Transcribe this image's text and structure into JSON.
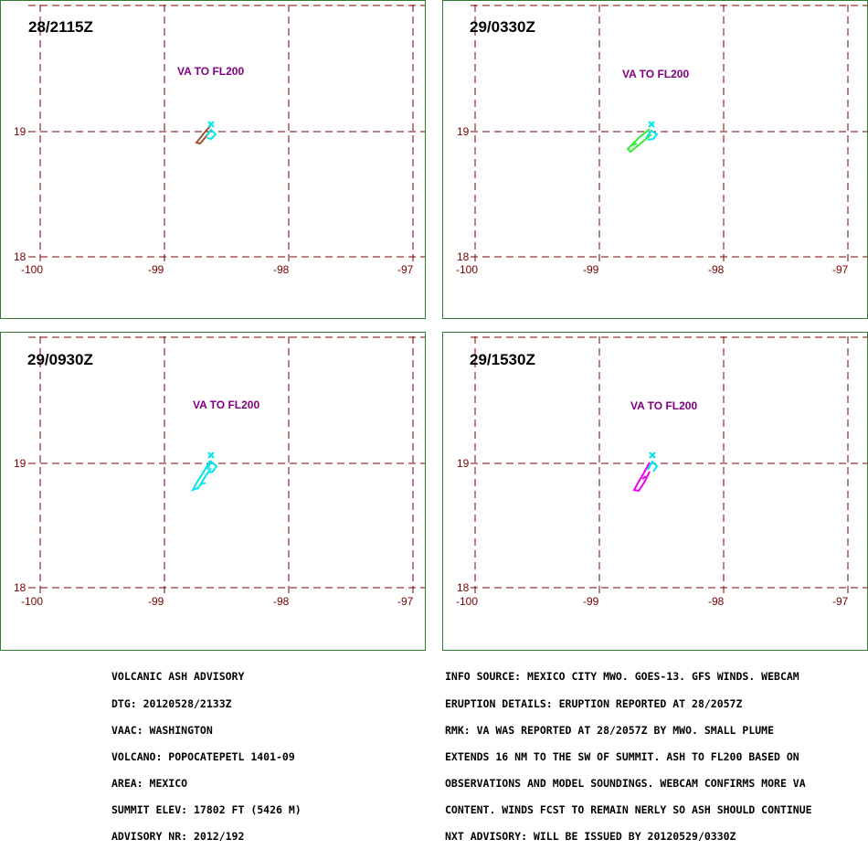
{
  "colors": {
    "frame": "#2e7d32",
    "grid": "#7a0000",
    "label": "#800080",
    "summit": "#00e5ee"
  },
  "map": {
    "lon_ticks": [
      "-100",
      "-99",
      "-98",
      "-97"
    ],
    "lat_ticks": [
      "19",
      "18"
    ]
  },
  "panels": [
    {
      "time": "28/2115Z",
      "label": "VA TO FL200",
      "plume_color": "#a0522d"
    },
    {
      "time": "29/0330Z",
      "label": "VA TO FL200",
      "plume_color": "#33ee33"
    },
    {
      "time": "29/0930Z",
      "label": "VA TO FL200",
      "plume_color": "#00e5ee"
    },
    {
      "time": "29/1530Z",
      "label": "VA TO FL200",
      "plume_color": "#ee00ee"
    }
  ],
  "advisory_left": [
    "VOLCANIC ASH ADVISORY",
    "DTG: 20120528/2133Z",
    "VAAC: WASHINGTON",
    "VOLCANO: POPOCATEPETL 1401-09",
    "AREA: MEXICO",
    "SUMMIT ELEV: 17802 FT (5426 M)",
    "ADVISORY NR: 2012/192"
  ],
  "advisory_right": [
    "INFO SOURCE: MEXICO CITY MWO. GOES-13. GFS WINDS. WEBCAM",
    "ERUPTION DETAILS: ERUPTION REPORTED AT 28/2057Z",
    "RMK: VA WAS REPORTED AT 28/2057Z BY MWO. SMALL PLUME",
    "EXTENDS 16 NM TO THE SW OF SUMMIT. ASH TO FL200 BASED ON",
    "OBSERVATIONS AND MODEL SOUNDINGS. WEBCAM CONFIRMS MORE VA",
    "CONTENT. WINDS FCST TO REMAIN NERLY SO ASH SHOULD CONTINUE",
    "NXT ADVISORY: WILL BE ISSUED BY 20120529/0330Z"
  ]
}
